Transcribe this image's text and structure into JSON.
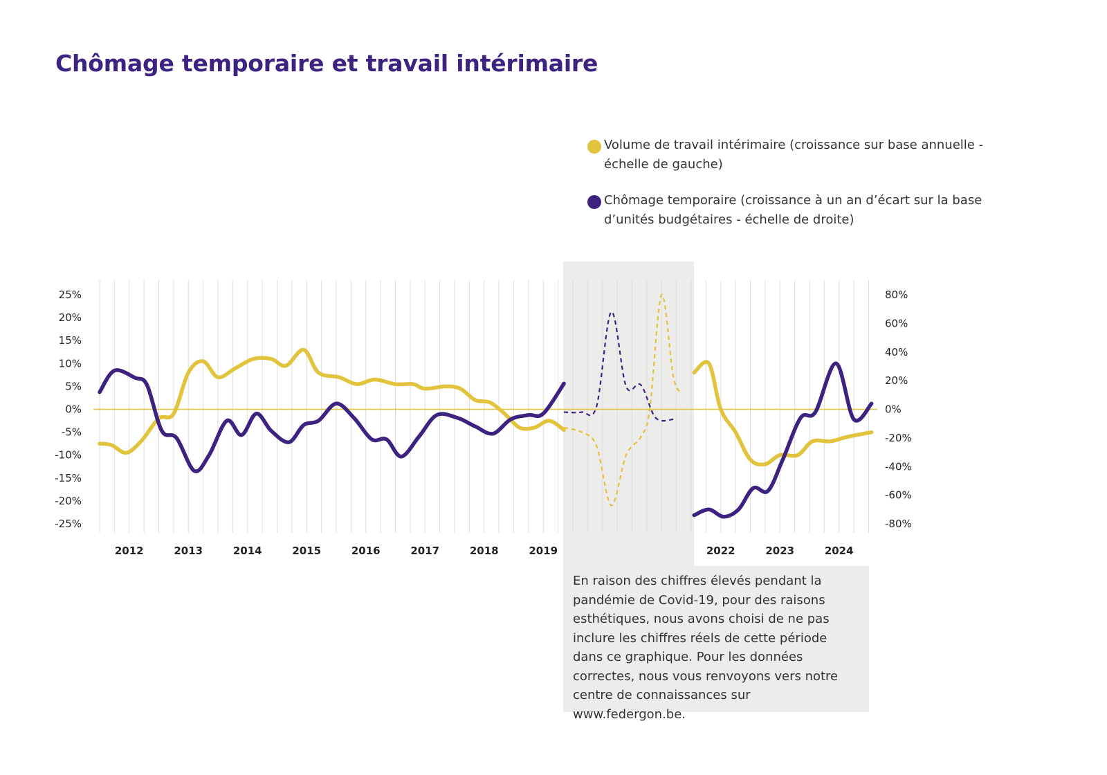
{
  "title": "Chômage temporaire et travail intérimaire",
  "legend": [
    {
      "label": "Volume de travail intérimaire (croissance sur base annuelle - échelle de gauche)",
      "color": "#e2c33e"
    },
    {
      "label": "Chômage temporaire (croissance à un an d’écart sur la base d’unités budgétaires - échelle de droite)",
      "color": "#3d2280"
    }
  ],
  "note": "En raison des chiffres élevés pendant la pandémie de Covid-19, pour des raisons esthétiques, nous avons choisi de ne pas inclure les chiffres réels de cette période dans ce graphique. Pour les données correctes, nous vous renvoyons vers notre centre de connaissances sur www.federgon.be.",
  "colors": {
    "yellow": "#e2c33e",
    "purple": "#3d2280",
    "shade": "#ecedea",
    "grid": "#dcdcdc"
  },
  "chart_data": {
    "type": "line",
    "x_labels": [
      "2012",
      "2013",
      "2014",
      "2015",
      "2016",
      "2017",
      "2018",
      "2019",
      "2022",
      "2023",
      "2024"
    ],
    "x_label_positions": [
      2012,
      2013,
      2014,
      2015,
      2016,
      2017,
      2018,
      2019,
      2022,
      2023,
      2024
    ],
    "xlim": [
      2011.5,
      2024.6
    ],
    "gap": [
      2019.35,
      2021.55
    ],
    "left_axis": {
      "ticks": [
        "25%",
        "20%",
        "15%",
        "10%",
        "5%",
        "0%",
        "-5%",
        "-10%",
        "-15%",
        "-20%",
        "-25%"
      ],
      "ylim": [
        -25,
        25
      ]
    },
    "right_axis": {
      "ticks": [
        "80%",
        "60%",
        "40%",
        "20%",
        "0%",
        "-20%",
        "-40%",
        "-60%",
        "-80%"
      ],
      "ylim": [
        -80,
        80
      ]
    },
    "series": [
      {
        "axis": "left",
        "color": "#e2c33e",
        "solid": [
          [
            [
              2011.5,
              -7.5
            ],
            [
              2011.7,
              -7.8
            ],
            [
              2011.95,
              -9.5
            ],
            [
              2012.2,
              -7
            ],
            [
              2012.5,
              -2
            ],
            [
              2012.75,
              -1
            ],
            [
              2013.0,
              8
            ],
            [
              2013.25,
              10.5
            ],
            [
              2013.5,
              7
            ],
            [
              2013.8,
              9
            ],
            [
              2014.1,
              11
            ],
            [
              2014.4,
              11
            ],
            [
              2014.65,
              9.5
            ],
            [
              2014.95,
              13
            ],
            [
              2015.2,
              8
            ],
            [
              2015.55,
              7
            ],
            [
              2015.85,
              5.5
            ],
            [
              2016.15,
              6.5
            ],
            [
              2016.5,
              5.5
            ],
            [
              2016.8,
              5.5
            ],
            [
              2017.0,
              4.5
            ],
            [
              2017.35,
              5
            ],
            [
              2017.6,
              4.5
            ],
            [
              2017.85,
              2
            ],
            [
              2018.1,
              1.5
            ],
            [
              2018.35,
              -1
            ],
            [
              2018.6,
              -4
            ],
            [
              2018.85,
              -4
            ],
            [
              2019.1,
              -2.5
            ],
            [
              2019.35,
              -4.5
            ]
          ],
          [
            [
              2021.55,
              8
            ],
            [
              2021.8,
              10
            ],
            [
              2022.0,
              0
            ],
            [
              2022.25,
              -5
            ],
            [
              2022.5,
              -11
            ],
            [
              2022.75,
              -12
            ],
            [
              2023.0,
              -10
            ],
            [
              2023.3,
              -10
            ],
            [
              2023.55,
              -7
            ],
            [
              2023.85,
              -7
            ],
            [
              2024.15,
              -6
            ],
            [
              2024.55,
              -5
            ]
          ]
        ],
        "dashed": [
          [
            2019.35,
            -4
          ],
          [
            2019.65,
            -5
          ],
          [
            2019.9,
            -8
          ],
          [
            2020.15,
            -21
          ],
          [
            2020.4,
            -10
          ],
          [
            2020.65,
            -6
          ],
          [
            2020.8,
            0
          ],
          [
            2021.0,
            25
          ],
          [
            2021.2,
            7
          ],
          [
            2021.35,
            3.5
          ]
        ]
      },
      {
        "axis": "right",
        "color": "#3d2280",
        "solid": [
          [
            [
              2011.5,
              12
            ],
            [
              2011.75,
              27
            ],
            [
              2012.1,
              22
            ],
            [
              2012.3,
              17
            ],
            [
              2012.55,
              -15
            ],
            [
              2012.8,
              -20
            ],
            [
              2013.1,
              -43
            ],
            [
              2013.35,
              -32
            ],
            [
              2013.65,
              -8
            ],
            [
              2013.9,
              -18
            ],
            [
              2014.15,
              -3
            ],
            [
              2014.4,
              -15
            ],
            [
              2014.7,
              -23
            ],
            [
              2014.95,
              -11
            ],
            [
              2015.2,
              -8
            ],
            [
              2015.5,
              4
            ],
            [
              2015.8,
              -6
            ],
            [
              2016.1,
              -21
            ],
            [
              2016.35,
              -21
            ],
            [
              2016.6,
              -33
            ],
            [
              2016.9,
              -19
            ],
            [
              2017.2,
              -4
            ],
            [
              2017.55,
              -6
            ],
            [
              2017.85,
              -12
            ],
            [
              2018.15,
              -17
            ],
            [
              2018.45,
              -7
            ],
            [
              2018.75,
              -4
            ],
            [
              2019.0,
              -3
            ],
            [
              2019.35,
              18
            ]
          ],
          [
            [
              2021.55,
              -74
            ],
            [
              2021.8,
              -70
            ],
            [
              2022.05,
              -75
            ],
            [
              2022.3,
              -70
            ],
            [
              2022.55,
              -55
            ],
            [
              2022.8,
              -57
            ],
            [
              2023.05,
              -35
            ],
            [
              2023.35,
              -6
            ],
            [
              2023.6,
              -2
            ],
            [
              2023.95,
              32
            ],
            [
              2024.25,
              -7
            ],
            [
              2024.55,
              4
            ]
          ]
        ],
        "dashed": [
          [
            2019.35,
            -2
          ],
          [
            2019.65,
            -2
          ],
          [
            2019.9,
            2
          ],
          [
            2020.15,
            68
          ],
          [
            2020.4,
            16
          ],
          [
            2020.65,
            17
          ],
          [
            2020.9,
            -6
          ],
          [
            2021.2,
            -7
          ]
        ]
      }
    ]
  }
}
